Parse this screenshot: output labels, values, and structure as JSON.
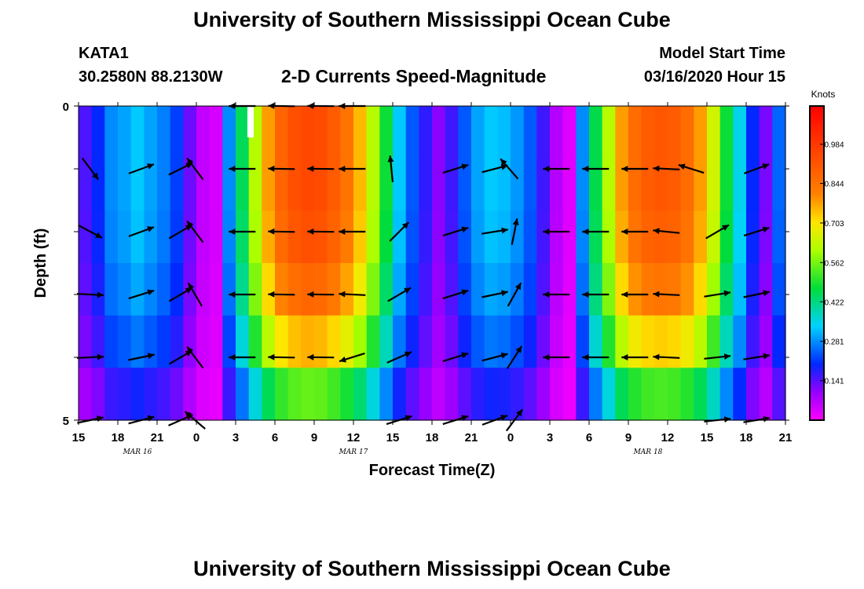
{
  "header": {
    "title": "University of Southern Mississippi Ocean Cube",
    "station_id": "KATA1",
    "station_coords": "30.2580N 88.2130W",
    "subtitle": "2-D Currents Speed-Magnitude",
    "model_start_label": "Model Start Time",
    "model_start_value": "03/16/2020 Hour 15"
  },
  "footer": {
    "title": "University of Southern Mississippi Ocean Cube"
  },
  "chart_data": {
    "type": "heatmap",
    "title": "2-D Currents Speed-Magnitude",
    "xlabel": "Forecast Time(Z)",
    "ylabel": "Depth (ft)",
    "colorbar_label": "Knots",
    "x_tick_labels": [
      "15",
      "18",
      "21",
      "0",
      "3",
      "6",
      "9",
      "12",
      "15",
      "18",
      "21",
      "0",
      "3",
      "6",
      "9",
      "12",
      "15",
      "18",
      "21"
    ],
    "date_labels": [
      {
        "text": "MAR 16",
        "hour": 4.5
      },
      {
        "text": "MAR 17",
        "hour": 21
      },
      {
        "text": "MAR 18",
        "hour": 43.5
      }
    ],
    "y_tick_labels": [
      "0",
      "5"
    ],
    "ylim": [
      0,
      5
    ],
    "colorbar_ticks": [
      "0.984",
      "0.844",
      "0.703",
      "0.562",
      "0.422",
      "0.281",
      "0.141"
    ],
    "colorbar_tick_values": [
      0.984,
      0.844,
      0.703,
      0.562,
      0.422,
      0.281,
      0.141
    ],
    "colorbar_range": [
      0.0,
      1.12
    ],
    "hours_range": [
      0,
      54
    ],
    "column_hours": [
      0,
      1,
      2,
      3,
      4,
      5,
      6,
      7,
      8,
      9,
      10,
      11,
      12,
      13,
      14,
      15,
      16,
      17,
      18,
      19,
      20,
      21,
      22,
      23,
      24,
      25,
      26,
      27,
      28,
      29,
      30,
      31,
      32,
      33,
      34,
      35,
      36,
      37,
      38,
      39,
      40,
      41,
      42,
      43,
      44,
      45,
      46,
      47,
      48,
      49,
      50,
      51,
      52,
      53
    ],
    "speed_profile": [
      0.15,
      0.2,
      0.28,
      0.3,
      0.33,
      0.3,
      0.27,
      0.22,
      0.13,
      0.06,
      0.04,
      0.28,
      0.45,
      0.62,
      0.78,
      0.88,
      0.93,
      0.95,
      0.94,
      0.9,
      0.84,
      0.75,
      0.62,
      0.48,
      0.33,
      0.24,
      0.17,
      0.11,
      0.16,
      0.24,
      0.3,
      0.33,
      0.32,
      0.29,
      0.24,
      0.16,
      0.07,
      0.03,
      0.28,
      0.46,
      0.62,
      0.78,
      0.86,
      0.9,
      0.91,
      0.9,
      0.86,
      0.78,
      0.65,
      0.48,
      0.35,
      0.2,
      0.12,
      0.25
    ],
    "depth_factors": [
      1.0,
      1.0,
      0.98,
      0.92,
      0.8,
      0.58
    ],
    "arrow_rows": [
      {
        "depth": 1.0,
        "arrows": [
          {
            "hour": 0.9,
            "u": 0.6,
            "v": -0.8
          },
          {
            "hour": 4.8,
            "u": 0.95,
            "v": 0.35
          },
          {
            "hour": 7.8,
            "u": 0.9,
            "v": 0.45
          },
          {
            "hour": 8.9,
            "u": -0.6,
            "v": 0.8
          },
          {
            "hour": 12.5,
            "u": -1.0,
            "v": 0.0
          },
          {
            "hour": 15.5,
            "u": -1.0,
            "v": 0.02
          },
          {
            "hour": 18.5,
            "u": -1.0,
            "v": 0.01
          },
          {
            "hour": 20.9,
            "u": -1.0,
            "v": 0.0
          },
          {
            "hour": 23.9,
            "u": -0.1,
            "v": 1.0
          },
          {
            "hour": 28.8,
            "u": 0.95,
            "v": 0.3
          },
          {
            "hour": 31.8,
            "u": 0.95,
            "v": 0.25
          },
          {
            "hour": 32.9,
            "u": -0.65,
            "v": 0.75
          },
          {
            "hour": 36.5,
            "u": -1.0,
            "v": 0.0
          },
          {
            "hour": 39.5,
            "u": -1.0,
            "v": 0.0
          },
          {
            "hour": 42.5,
            "u": -1.0,
            "v": 0.0
          },
          {
            "hour": 44.9,
            "u": -1.0,
            "v": 0.05
          },
          {
            "hour": 46.8,
            "u": -0.95,
            "v": 0.3
          },
          {
            "hour": 51.8,
            "u": 0.95,
            "v": 0.35
          }
        ]
      },
      {
        "depth": 2.0,
        "arrows": [
          {
            "hour": 0.9,
            "u": 0.85,
            "v": -0.45
          },
          {
            "hour": 4.8,
            "u": 0.95,
            "v": 0.35
          },
          {
            "hour": 7.8,
            "u": 0.85,
            "v": 0.5
          },
          {
            "hour": 8.9,
            "u": -0.6,
            "v": 0.8
          },
          {
            "hour": 12.5,
            "u": -1.0,
            "v": 0.0
          },
          {
            "hour": 15.5,
            "u": -1.0,
            "v": 0.02
          },
          {
            "hour": 18.5,
            "u": -1.0,
            "v": 0.01
          },
          {
            "hour": 20.9,
            "u": -1.0,
            "v": 0.0
          },
          {
            "hour": 24.5,
            "u": 0.7,
            "v": 0.7
          },
          {
            "hour": 28.8,
            "u": 0.95,
            "v": 0.3
          },
          {
            "hour": 31.8,
            "u": 0.95,
            "v": 0.15
          },
          {
            "hour": 33.3,
            "u": 0.2,
            "v": 1.0
          },
          {
            "hour": 36.5,
            "u": -1.0,
            "v": 0.0
          },
          {
            "hour": 39.5,
            "u": -1.0,
            "v": 0.0
          },
          {
            "hour": 42.5,
            "u": -1.0,
            "v": 0.0
          },
          {
            "hour": 44.9,
            "u": -1.0,
            "v": 0.1
          },
          {
            "hour": 48.8,
            "u": 0.85,
            "v": 0.5
          },
          {
            "hour": 51.8,
            "u": 0.95,
            "v": 0.3
          }
        ]
      },
      {
        "depth": 3.0,
        "arrows": [
          {
            "hour": 0.9,
            "u": 1.0,
            "v": -0.05
          },
          {
            "hour": 4.8,
            "u": 0.95,
            "v": 0.3
          },
          {
            "hour": 7.8,
            "u": 0.85,
            "v": 0.5
          },
          {
            "hour": 8.9,
            "u": -0.5,
            "v": 0.85
          },
          {
            "hour": 12.5,
            "u": -1.0,
            "v": 0.0
          },
          {
            "hour": 15.5,
            "u": -1.0,
            "v": 0.02
          },
          {
            "hour": 18.5,
            "u": -1.0,
            "v": 0.01
          },
          {
            "hour": 20.9,
            "u": -1.0,
            "v": 0.05
          },
          {
            "hour": 24.5,
            "u": 0.85,
            "v": 0.5
          },
          {
            "hour": 28.8,
            "u": 0.95,
            "v": 0.3
          },
          {
            "hour": 31.8,
            "u": 0.95,
            "v": 0.2
          },
          {
            "hour": 33.3,
            "u": 0.5,
            "v": 0.9
          },
          {
            "hour": 36.5,
            "u": -1.0,
            "v": 0.0
          },
          {
            "hour": 39.5,
            "u": -1.0,
            "v": 0.0
          },
          {
            "hour": 42.5,
            "u": -1.0,
            "v": 0.0
          },
          {
            "hour": 44.9,
            "u": -1.0,
            "v": 0.05
          },
          {
            "hour": 48.8,
            "u": 0.95,
            "v": 0.15
          },
          {
            "hour": 51.8,
            "u": 0.95,
            "v": 0.2
          }
        ]
      },
      {
        "depth": 4.0,
        "arrows": [
          {
            "hour": 0.9,
            "u": 1.0,
            "v": 0.05
          },
          {
            "hour": 4.8,
            "u": 0.95,
            "v": 0.2
          },
          {
            "hour": 7.8,
            "u": 0.85,
            "v": 0.5
          },
          {
            "hour": 8.9,
            "u": -0.6,
            "v": 0.8
          },
          {
            "hour": 12.5,
            "u": -1.0,
            "v": 0.0
          },
          {
            "hour": 15.5,
            "u": -1.0,
            "v": 0.02
          },
          {
            "hour": 18.5,
            "u": -1.0,
            "v": 0.01
          },
          {
            "hour": 20.9,
            "u": -0.95,
            "v": -0.3
          },
          {
            "hour": 24.5,
            "u": 0.9,
            "v": 0.4
          },
          {
            "hour": 28.8,
            "u": 0.95,
            "v": 0.3
          },
          {
            "hour": 31.8,
            "u": 0.95,
            "v": 0.25
          },
          {
            "hour": 33.3,
            "u": 0.55,
            "v": 0.85
          },
          {
            "hour": 36.5,
            "u": -1.0,
            "v": 0.0
          },
          {
            "hour": 39.5,
            "u": -1.0,
            "v": 0.0
          },
          {
            "hour": 42.5,
            "u": -1.0,
            "v": 0.0
          },
          {
            "hour": 44.9,
            "u": -1.0,
            "v": 0.05
          },
          {
            "hour": 48.8,
            "u": 0.95,
            "v": 0.1
          },
          {
            "hour": 51.8,
            "u": 0.95,
            "v": 0.15
          }
        ]
      },
      {
        "depth": 5.0,
        "arrows": [
          {
            "hour": 0.9,
            "u": 0.95,
            "v": 0.2
          },
          {
            "hour": 4.8,
            "u": 0.95,
            "v": 0.25
          },
          {
            "hour": 7.8,
            "u": 0.9,
            "v": 0.4
          },
          {
            "hour": 8.9,
            "u": -0.75,
            "v": 0.65
          },
          {
            "hour": 24.5,
            "u": 0.95,
            "v": 0.3
          },
          {
            "hour": 28.8,
            "u": 0.95,
            "v": 0.3
          },
          {
            "hour": 31.8,
            "u": 0.95,
            "v": 0.35
          },
          {
            "hour": 33.3,
            "u": 0.6,
            "v": 0.8
          },
          {
            "hour": 48.8,
            "u": 0.95,
            "v": 0.1
          },
          {
            "hour": 51.8,
            "u": 0.95,
            "v": 0.15
          }
        ]
      },
      {
        "depth": 0.0,
        "arrows": [
          {
            "hour": 12.5,
            "u": -1.0,
            "v": 0.0
          },
          {
            "hour": 15.5,
            "u": -1.0,
            "v": 0.02
          },
          {
            "hour": 18.5,
            "u": -1.0,
            "v": 0.01
          },
          {
            "hour": 20.9,
            "u": -1.0,
            "v": 0.0
          }
        ]
      }
    ]
  }
}
